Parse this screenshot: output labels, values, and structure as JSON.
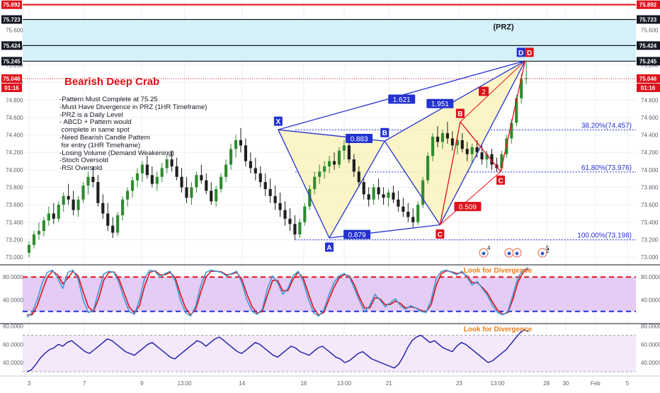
{
  "chart_data": {
    "type": "candlestick",
    "instrument_note": "",
    "title": "Bearish Deep Crab",
    "notes": [
      "-Pattern Must Complete at 75.25",
      "-Must Have Divergence in PRZ (1HR Timeframe)",
      "-PRZ is a Daily Level",
      "- ABCD + Pattern would",
      " complete in same spot",
      "-Need Bearish Candle Pattern",
      " for entry (1HR Timeframe)",
      "-Losing Volume (Demand Weakening)",
      "-Stoch Oversold",
      "-RSI Oversold"
    ],
    "price_axis": {
      "ylim": [
        72.92,
        75.93
      ],
      "ticks": [
        "75.600",
        "75.400",
        "75.200",
        "75.000",
        "74.800",
        "74.600",
        "74.400",
        "74.200",
        "74.000",
        "73.800",
        "73.600",
        "73.400",
        "73.200",
        "73.000"
      ],
      "tick_values": [
        75.6,
        75.4,
        75.2,
        75.0,
        74.8,
        74.6,
        74.4,
        74.2,
        74.0,
        73.8,
        73.6,
        73.4,
        73.2,
        73.0
      ]
    },
    "price_tags": [
      {
        "label": "75.892",
        "value": 75.892,
        "color": "#e0101a"
      },
      {
        "label": "75.723",
        "value": 75.723,
        "color": "#131722"
      },
      {
        "label": "75.424",
        "value": 75.424,
        "color": "#131722"
      },
      {
        "label": "75.245",
        "value": 75.245,
        "color": "#131722"
      },
      {
        "label": "75.046",
        "value": 75.046,
        "color": "#e0101a"
      }
    ],
    "countdown": "01:16",
    "prz": {
      "label": "(PRZ)",
      "top": 75.723,
      "bottom": 75.245,
      "inner": 75.424,
      "resistance": 75.892
    },
    "fib_levels": [
      {
        "label": "38.20%(74.457)",
        "value": 74.457
      },
      {
        "label": "61.80%(73.976)",
        "value": 73.976
      },
      {
        "label": "100.00%(73.198)",
        "value": 73.198
      }
    ],
    "xabcd": {
      "points": [
        {
          "name": "X",
          "t": 14.7,
          "price": 74.46
        },
        {
          "name": "A",
          "t": 17.1,
          "price": 73.22
        },
        {
          "name": "B",
          "t": 19.7,
          "price": 74.33
        },
        {
          "name": "C",
          "t": 22.3,
          "price": 73.37
        },
        {
          "name": "D",
          "t": 26.3,
          "price": 75.25
        }
      ],
      "ratios": [
        {
          "label": "0.883",
          "t": 18.5,
          "price": 74.36
        },
        {
          "label": "1.621",
          "t": 20.5,
          "price": 74.81
        },
        {
          "label": "0.879",
          "t": 18.4,
          "price": 73.26
        },
        {
          "label": "1.951",
          "t": 22.3,
          "price": 74.76
        }
      ]
    },
    "abcd": {
      "points": [
        {
          "name": "A",
          "t": 22.3,
          "price": 73.37
        },
        {
          "name": "B",
          "t": 23.25,
          "price": 74.55
        },
        {
          "name": "C",
          "t": 25.15,
          "price": 73.98
        },
        {
          "name": "D",
          "t": 26.3,
          "price": 75.25
        }
      ],
      "ratios": [
        {
          "label": "0.509",
          "t": 23.6,
          "price": 73.58
        },
        {
          "label": "2",
          "t": 24.35,
          "price": 74.9
        }
      ]
    },
    "time_axis": {
      "xlim": [
        2.7,
        31.5
      ],
      "ticks": [
        {
          "label": "3",
          "t": 3
        },
        {
          "label": "7",
          "t": 5.6
        },
        {
          "label": "9",
          "t": 8.3
        },
        {
          "label": "13:00",
          "t": 10.3
        },
        {
          "label": "14",
          "t": 13
        },
        {
          "label": "16",
          "t": 15.9
        },
        {
          "label": "13:00",
          "t": 17.8
        },
        {
          "label": "21",
          "t": 19.9
        },
        {
          "label": "23",
          "t": 23.2
        },
        {
          "label": "13:00",
          "t": 25
        },
        {
          "label": "28",
          "t": 27.3
        },
        {
          "label": "30",
          "t": 28.2
        },
        {
          "label": "Feb",
          "t": 29.6
        },
        {
          "label": "5",
          "t": 31.1
        }
      ]
    },
    "candles_ohlc": [
      [
        73.05,
        73.18,
        73.0,
        73.14
      ],
      [
        73.14,
        73.3,
        73.1,
        73.26
      ],
      [
        73.26,
        73.4,
        73.2,
        73.3
      ],
      [
        73.3,
        73.46,
        73.24,
        73.42
      ],
      [
        73.42,
        73.58,
        73.36,
        73.5
      ],
      [
        73.5,
        73.62,
        73.38,
        73.44
      ],
      [
        73.44,
        73.64,
        73.4,
        73.6
      ],
      [
        73.6,
        73.74,
        73.52,
        73.7
      ],
      [
        73.7,
        73.84,
        73.6,
        73.66
      ],
      [
        73.66,
        73.76,
        73.48,
        73.54
      ],
      [
        73.54,
        73.7,
        73.46,
        73.66
      ],
      [
        73.66,
        73.86,
        73.62,
        73.82
      ],
      [
        73.82,
        73.98,
        73.72,
        73.92
      ],
      [
        73.92,
        74.04,
        73.8,
        73.86
      ],
      [
        73.86,
        73.94,
        73.58,
        73.62
      ],
      [
        73.62,
        73.72,
        73.44,
        73.5
      ],
      [
        73.5,
        73.62,
        73.3,
        73.36
      ],
      [
        73.36,
        73.46,
        73.22,
        73.28
      ],
      [
        73.28,
        73.52,
        73.24,
        73.48
      ],
      [
        73.48,
        73.7,
        73.42,
        73.66
      ],
      [
        73.66,
        73.8,
        73.58,
        73.76
      ],
      [
        73.76,
        73.92,
        73.68,
        73.88
      ],
      [
        73.88,
        74.02,
        73.8,
        73.96
      ],
      [
        73.96,
        74.1,
        73.86,
        74.06
      ],
      [
        74.06,
        74.16,
        73.9,
        73.94
      ],
      [
        73.94,
        74.04,
        73.8,
        73.84
      ],
      [
        73.84,
        73.98,
        73.76,
        73.92
      ],
      [
        73.92,
        74.08,
        73.86,
        74.02
      ],
      [
        74.02,
        74.18,
        73.96,
        74.12
      ],
      [
        74.12,
        74.22,
        73.98,
        74.04
      ],
      [
        74.04,
        74.14,
        73.88,
        73.92
      ],
      [
        73.92,
        74.02,
        73.74,
        73.8
      ],
      [
        73.8,
        73.92,
        73.62,
        73.68
      ],
      [
        73.68,
        73.86,
        73.6,
        73.8
      ],
      [
        73.8,
        73.98,
        73.74,
        73.94
      ],
      [
        73.94,
        74.06,
        73.84,
        73.88
      ],
      [
        73.88,
        73.96,
        73.72,
        73.76
      ],
      [
        73.76,
        73.86,
        73.6,
        73.64
      ],
      [
        73.64,
        73.82,
        73.58,
        73.78
      ],
      [
        73.78,
        73.96,
        73.74,
        73.92
      ],
      [
        73.92,
        74.12,
        73.86,
        74.06
      ],
      [
        74.06,
        74.3,
        74.0,
        74.24
      ],
      [
        74.24,
        74.4,
        74.14,
        74.34
      ],
      [
        74.34,
        74.48,
        74.2,
        74.28
      ],
      [
        74.28,
        74.36,
        74.04,
        74.1
      ],
      [
        74.1,
        74.2,
        73.96,
        74.02
      ],
      [
        74.02,
        74.14,
        73.88,
        73.96
      ],
      [
        73.96,
        74.04,
        73.8,
        73.86
      ],
      [
        73.86,
        73.96,
        73.7,
        73.78
      ],
      [
        73.78,
        73.9,
        73.62,
        73.7
      ],
      [
        73.7,
        73.82,
        73.54,
        73.62
      ],
      [
        73.62,
        73.74,
        73.46,
        73.54
      ],
      [
        73.54,
        73.64,
        73.36,
        73.44
      ],
      [
        73.44,
        73.56,
        73.3,
        73.38
      ],
      [
        73.38,
        73.48,
        73.2,
        73.26
      ],
      [
        73.26,
        73.44,
        73.22,
        73.4
      ],
      [
        73.4,
        73.62,
        73.36,
        73.58
      ],
      [
        73.58,
        73.82,
        73.54,
        73.78
      ],
      [
        73.78,
        73.98,
        73.72,
        73.92
      ],
      [
        73.92,
        74.06,
        73.84,
        73.98
      ],
      [
        73.98,
        74.1,
        73.9,
        74.04
      ],
      [
        74.04,
        74.16,
        73.96,
        74.1
      ],
      [
        74.1,
        74.2,
        74.0,
        74.06
      ],
      [
        74.06,
        74.26,
        74.02,
        74.22
      ],
      [
        74.22,
        74.34,
        74.12,
        74.28
      ],
      [
        74.28,
        74.32,
        74.08,
        74.12
      ],
      [
        74.12,
        74.18,
        73.92,
        73.98
      ],
      [
        73.98,
        74.04,
        73.8,
        73.86
      ],
      [
        73.86,
        73.92,
        73.66,
        73.72
      ],
      [
        73.72,
        73.8,
        73.58,
        73.66
      ],
      [
        73.66,
        73.84,
        73.6,
        73.8
      ],
      [
        73.8,
        73.9,
        73.66,
        73.72
      ],
      [
        73.72,
        73.8,
        73.6,
        73.68
      ],
      [
        73.68,
        73.78,
        73.58,
        73.74
      ],
      [
        73.74,
        73.82,
        73.62,
        73.66
      ],
      [
        73.66,
        73.76,
        73.52,
        73.58
      ],
      [
        73.58,
        73.68,
        73.46,
        73.52
      ],
      [
        73.52,
        73.62,
        73.4,
        73.46
      ],
      [
        73.46,
        73.56,
        73.34,
        73.4
      ],
      [
        73.4,
        73.64,
        73.37,
        73.6
      ],
      [
        73.6,
        73.92,
        73.56,
        73.88
      ],
      [
        73.88,
        74.2,
        73.84,
        74.16
      ],
      [
        74.16,
        74.42,
        74.1,
        74.38
      ],
      [
        74.38,
        74.5,
        74.26,
        74.32
      ],
      [
        74.32,
        74.46,
        74.24,
        74.42
      ],
      [
        74.42,
        74.55,
        74.3,
        74.36
      ],
      [
        74.36,
        74.44,
        74.22,
        74.28
      ],
      [
        74.28,
        74.4,
        74.18,
        74.34
      ],
      [
        74.34,
        74.42,
        74.2,
        74.24
      ],
      [
        74.24,
        74.32,
        74.1,
        74.18
      ],
      [
        74.18,
        74.3,
        74.08,
        74.26
      ],
      [
        74.26,
        74.34,
        74.14,
        74.2
      ],
      [
        74.2,
        74.28,
        74.06,
        74.12
      ],
      [
        74.12,
        74.22,
        74.02,
        74.18
      ],
      [
        74.18,
        74.24,
        74.0,
        74.06
      ],
      [
        74.06,
        74.14,
        73.98,
        74.02
      ],
      [
        74.02,
        74.22,
        73.99,
        74.18
      ],
      [
        74.18,
        74.4,
        74.14,
        74.36
      ],
      [
        74.36,
        74.58,
        74.3,
        74.54
      ],
      [
        74.54,
        74.86,
        74.5,
        74.82
      ],
      [
        74.82,
        75.1,
        74.76,
        75.04
      ],
      [
        75.04,
        75.25,
        74.98,
        75.05
      ]
    ],
    "stochastic": {
      "ylim": [
        0,
        100
      ],
      "ticks": [
        "80.0000",
        "40.0000"
      ],
      "tick_values": [
        80,
        40
      ],
      "levels": [
        80,
        20
      ],
      "annotation": "Look for Divergence",
      "k": [
        10,
        18,
        40,
        70,
        88,
        92,
        78,
        60,
        88,
        92,
        76,
        40,
        18,
        22,
        55,
        85,
        90,
        88,
        70,
        42,
        20,
        15,
        40,
        78,
        92,
        90,
        80,
        86,
        90,
        72,
        40,
        18,
        12,
        30,
        66,
        88,
        92,
        90,
        88,
        82,
        86,
        90,
        70,
        40,
        20,
        15,
        24,
        60,
        82,
        70,
        50,
        60,
        82,
        90,
        72,
        42,
        18,
        12,
        22,
        48,
        70,
        82,
        86,
        80,
        60,
        38,
        20,
        30,
        50,
        40,
        28,
        35,
        42,
        30,
        24,
        30,
        26,
        20,
        18,
        40,
        78,
        90,
        92,
        88,
        84,
        90,
        80,
        66,
        72,
        60,
        48,
        30,
        18,
        14,
        20,
        50,
        80,
        92,
        96
      ],
      "d": [
        14,
        14,
        30,
        56,
        80,
        90,
        84,
        68,
        78,
        90,
        82,
        54,
        28,
        20,
        42,
        74,
        88,
        89,
        76,
        52,
        28,
        17,
        30,
        64,
        88,
        91,
        84,
        84,
        88,
        78,
        50,
        26,
        14,
        24,
        54,
        80,
        90,
        90,
        89,
        84,
        85,
        88,
        76,
        50,
        28,
        17,
        20,
        48,
        74,
        74,
        56,
        56,
        76,
        88,
        78,
        52,
        26,
        14,
        18,
        40,
        62,
        78,
        84,
        82,
        66,
        44,
        26,
        26,
        44,
        42,
        32,
        32,
        38,
        34,
        26,
        28,
        26,
        22,
        19,
        32,
        66,
        86,
        91,
        89,
        86,
        88,
        82,
        70,
        70,
        62,
        52,
        36,
        22,
        15,
        18,
        42,
        72,
        88,
        94
      ]
    },
    "rsi": {
      "ylim": [
        26,
        82
      ],
      "ticks": [
        "80.0000",
        "60.0000",
        "40.0000"
      ],
      "tick_values": [
        80,
        60,
        40
      ],
      "levels": [
        70,
        30
      ],
      "annotation": "Look for Divergence",
      "values": [
        30,
        32,
        38,
        45,
        50,
        54,
        56,
        60,
        58,
        62,
        64,
        60,
        56,
        52,
        50,
        54,
        58,
        62,
        66,
        64,
        60,
        56,
        52,
        50,
        48,
        52,
        56,
        60,
        62,
        58,
        54,
        50,
        46,
        44,
        48,
        52,
        56,
        60,
        64,
        62,
        58,
        62,
        66,
        68,
        64,
        60,
        56,
        52,
        50,
        54,
        58,
        62,
        60,
        56,
        52,
        48,
        46,
        50,
        54,
        58,
        56,
        52,
        50,
        48,
        52,
        56,
        58,
        54,
        50,
        46,
        44,
        40,
        42,
        46,
        50,
        52,
        48,
        44,
        42,
        40,
        38,
        36,
        34,
        38,
        46,
        56,
        64,
        68,
        70,
        66,
        62,
        64,
        60,
        56,
        54,
        52,
        58,
        62,
        60,
        56,
        52,
        48,
        44,
        40,
        42,
        46,
        50,
        54,
        60,
        66,
        72,
        76,
        74
      ]
    }
  }
}
